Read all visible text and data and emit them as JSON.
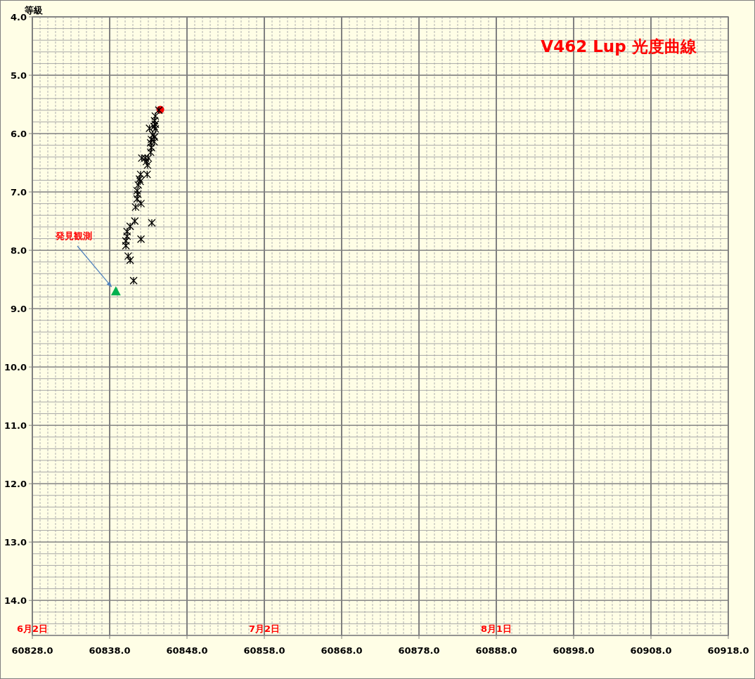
{
  "chart_data": {
    "type": "scatter",
    "title": "V462 Lup  光度曲線",
    "ylabel": "等級",
    "xlim": [
      60828,
      60918
    ],
    "ylim": [
      14.6,
      4.0
    ],
    "xticks": [
      {
        "value": 60828,
        "label": "60828.0"
      },
      {
        "value": 60838,
        "label": "60838.0"
      },
      {
        "value": 60848,
        "label": "60848.0"
      },
      {
        "value": 60858,
        "label": "60858.0"
      },
      {
        "value": 60868,
        "label": "60868.0"
      },
      {
        "value": 60878,
        "label": "60878.0"
      },
      {
        "value": 60888,
        "label": "60888.0"
      },
      {
        "value": 60898,
        "label": "60898.0"
      },
      {
        "value": 60908,
        "label": "60908.0"
      },
      {
        "value": 60918,
        "label": "60918.0"
      }
    ],
    "yticks": [
      {
        "value": 4,
        "label": "4.0"
      },
      {
        "value": 5,
        "label": "5.0"
      },
      {
        "value": 6,
        "label": "6.0"
      },
      {
        "value": 7,
        "label": "7.0"
      },
      {
        "value": 8,
        "label": "8.0"
      },
      {
        "value": 9,
        "label": "9.0"
      },
      {
        "value": 10,
        "label": "10.0"
      },
      {
        "value": 11,
        "label": "11.0"
      },
      {
        "value": 12,
        "label": "12.0"
      },
      {
        "value": 13,
        "label": "13.0"
      },
      {
        "value": 14,
        "label": "14.0"
      }
    ],
    "grid": true,
    "series": [
      {
        "color": "#000000",
        "marker": "cross",
        "x": [
          60844.36,
          60843.9,
          60843.8,
          60843.9,
          60843.75,
          60843.9,
          60843.15,
          60843.6,
          60843.8,
          60843.4,
          60843.75,
          60843.3,
          60843.4,
          60843.3,
          60842.15,
          60842.6,
          60843.0,
          60842.75,
          60842.9,
          60842.85,
          60842.0,
          60841.85,
          60841.95,
          60841.7,
          60841.55,
          60841.65,
          60841.55,
          60842.05,
          60841.35,
          60841.25,
          60843.45,
          60840.65,
          60840.25,
          60840.25,
          60842.05,
          60840.1,
          60840.1,
          60840.4,
          60840.65,
          60841.1
        ],
        "values": [
          5.6,
          5.7,
          5.78,
          5.84,
          5.88,
          5.92,
          5.91,
          6.02,
          6.06,
          6.1,
          6.14,
          6.16,
          6.24,
          6.32,
          6.42,
          6.42,
          6.42,
          6.48,
          6.54,
          6.7,
          6.7,
          6.78,
          6.82,
          6.88,
          6.98,
          7.04,
          7.12,
          7.2,
          7.26,
          7.5,
          7.53,
          7.59,
          7.68,
          7.76,
          7.81,
          7.84,
          7.92,
          8.1,
          8.17,
          8.52
        ]
      },
      {
        "color": "#00b050",
        "marker": "triangle",
        "x": [
          60838.8
        ],
        "values": [
          8.7
        ]
      },
      {
        "color": "#ff0000",
        "marker": "circle",
        "x": [
          60844.55
        ],
        "values": [
          5.59
        ]
      }
    ],
    "annotations": [
      {
        "text": "発見観測",
        "x": 60838.8,
        "y": 8.7
      },
      "6月2日",
      "7月2日",
      "8月1日"
    ]
  }
}
